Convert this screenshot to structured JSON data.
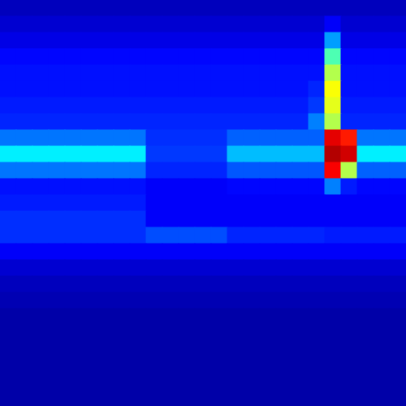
{
  "chart_data": {
    "type": "heatmap",
    "color": "jet",
    "tick_labels": false,
    "zlim": [
      0,
      1
    ],
    "cells": [
      [
        0.06,
        0.06,
        0.06,
        0.06,
        0.06,
        0.06,
        0.06,
        0.06,
        0.06,
        0.06,
        0.06,
        0.06,
        0.06,
        0.06,
        0.06,
        0.06,
        0.06,
        0.06,
        0.06,
        0.06,
        0.06,
        0.06,
        0.06,
        0.06,
        0.06
      ],
      [
        0.08,
        0.08,
        0.08,
        0.08,
        0.08,
        0.08,
        0.08,
        0.08,
        0.08,
        0.08,
        0.08,
        0.08,
        0.08,
        0.08,
        0.08,
        0.08,
        0.08,
        0.08,
        0.08,
        0.08,
        0.12,
        0.08,
        0.08,
        0.08,
        0.08
      ],
      [
        0.1,
        0.1,
        0.1,
        0.1,
        0.1,
        0.1,
        0.1,
        0.1,
        0.1,
        0.1,
        0.1,
        0.1,
        0.1,
        0.1,
        0.1,
        0.1,
        0.1,
        0.1,
        0.1,
        0.1,
        0.28,
        0.1,
        0.1,
        0.1,
        0.1
      ],
      [
        0.13,
        0.13,
        0.13,
        0.13,
        0.13,
        0.13,
        0.13,
        0.13,
        0.13,
        0.13,
        0.13,
        0.13,
        0.13,
        0.13,
        0.13,
        0.13,
        0.13,
        0.13,
        0.13,
        0.13,
        0.45,
        0.13,
        0.13,
        0.13,
        0.13
      ],
      [
        0.14,
        0.14,
        0.14,
        0.14,
        0.14,
        0.14,
        0.14,
        0.14,
        0.14,
        0.14,
        0.14,
        0.14,
        0.14,
        0.14,
        0.14,
        0.14,
        0.14,
        0.14,
        0.14,
        0.14,
        0.55,
        0.14,
        0.14,
        0.14,
        0.14
      ],
      [
        0.14,
        0.14,
        0.14,
        0.14,
        0.14,
        0.14,
        0.14,
        0.14,
        0.14,
        0.14,
        0.14,
        0.14,
        0.14,
        0.14,
        0.14,
        0.14,
        0.14,
        0.14,
        0.14,
        0.16,
        0.62,
        0.14,
        0.14,
        0.14,
        0.14
      ],
      [
        0.15,
        0.15,
        0.15,
        0.15,
        0.15,
        0.15,
        0.15,
        0.15,
        0.15,
        0.15,
        0.15,
        0.15,
        0.15,
        0.15,
        0.15,
        0.15,
        0.15,
        0.15,
        0.15,
        0.18,
        0.6,
        0.15,
        0.15,
        0.15,
        0.15
      ],
      [
        0.16,
        0.16,
        0.16,
        0.16,
        0.16,
        0.16,
        0.16,
        0.16,
        0.16,
        0.16,
        0.16,
        0.16,
        0.16,
        0.16,
        0.16,
        0.16,
        0.16,
        0.16,
        0.16,
        0.25,
        0.55,
        0.16,
        0.16,
        0.16,
        0.16
      ],
      [
        0.24,
        0.24,
        0.24,
        0.24,
        0.24,
        0.24,
        0.24,
        0.24,
        0.24,
        0.17,
        0.17,
        0.17,
        0.17,
        0.17,
        0.22,
        0.22,
        0.22,
        0.22,
        0.22,
        0.22,
        0.9,
        0.85,
        0.24,
        0.24,
        0.24
      ],
      [
        0.36,
        0.36,
        0.36,
        0.36,
        0.36,
        0.36,
        0.36,
        0.36,
        0.36,
        0.18,
        0.18,
        0.18,
        0.18,
        0.18,
        0.31,
        0.31,
        0.31,
        0.31,
        0.31,
        0.31,
        0.95,
        0.92,
        0.36,
        0.36,
        0.36
      ],
      [
        0.24,
        0.24,
        0.24,
        0.24,
        0.24,
        0.24,
        0.24,
        0.24,
        0.24,
        0.16,
        0.16,
        0.16,
        0.16,
        0.16,
        0.21,
        0.21,
        0.21,
        0.21,
        0.21,
        0.21,
        0.88,
        0.55,
        0.22,
        0.22,
        0.22
      ],
      [
        0.14,
        0.14,
        0.14,
        0.14,
        0.14,
        0.14,
        0.14,
        0.14,
        0.14,
        0.12,
        0.12,
        0.12,
        0.12,
        0.12,
        0.13,
        0.13,
        0.13,
        0.13,
        0.13,
        0.13,
        0.25,
        0.15,
        0.13,
        0.13,
        0.13
      ],
      [
        0.15,
        0.15,
        0.15,
        0.15,
        0.15,
        0.15,
        0.15,
        0.15,
        0.15,
        0.12,
        0.12,
        0.12,
        0.12,
        0.12,
        0.12,
        0.12,
        0.12,
        0.12,
        0.12,
        0.12,
        0.12,
        0.12,
        0.12,
        0.12,
        0.12
      ],
      [
        0.17,
        0.17,
        0.17,
        0.17,
        0.17,
        0.17,
        0.17,
        0.17,
        0.17,
        0.12,
        0.12,
        0.12,
        0.12,
        0.12,
        0.12,
        0.12,
        0.12,
        0.12,
        0.12,
        0.12,
        0.12,
        0.12,
        0.12,
        0.12,
        0.12
      ],
      [
        0.17,
        0.17,
        0.17,
        0.17,
        0.17,
        0.17,
        0.17,
        0.17,
        0.17,
        0.2,
        0.2,
        0.2,
        0.2,
        0.2,
        0.16,
        0.16,
        0.16,
        0.16,
        0.16,
        0.16,
        0.15,
        0.15,
        0.15,
        0.15,
        0.15
      ],
      [
        0.12,
        0.12,
        0.12,
        0.12,
        0.12,
        0.12,
        0.12,
        0.12,
        0.12,
        0.12,
        0.12,
        0.12,
        0.12,
        0.12,
        0.12,
        0.12,
        0.12,
        0.12,
        0.12,
        0.12,
        0.12,
        0.12,
        0.12,
        0.12,
        0.12
      ],
      [
        0.08,
        0.08,
        0.08,
        0.08,
        0.08,
        0.08,
        0.08,
        0.08,
        0.08,
        0.08,
        0.08,
        0.08,
        0.08,
        0.08,
        0.08,
        0.08,
        0.08,
        0.08,
        0.08,
        0.08,
        0.08,
        0.08,
        0.08,
        0.08,
        0.08
      ],
      [
        0.06,
        0.06,
        0.06,
        0.06,
        0.06,
        0.06,
        0.06,
        0.06,
        0.06,
        0.06,
        0.06,
        0.06,
        0.06,
        0.06,
        0.06,
        0.06,
        0.06,
        0.06,
        0.06,
        0.06,
        0.06,
        0.06,
        0.06,
        0.06,
        0.06
      ],
      [
        0.05,
        0.05,
        0.05,
        0.05,
        0.05,
        0.05,
        0.05,
        0.05,
        0.05,
        0.05,
        0.05,
        0.05,
        0.05,
        0.05,
        0.05,
        0.05,
        0.05,
        0.05,
        0.05,
        0.05,
        0.05,
        0.05,
        0.05,
        0.05,
        0.05
      ],
      [
        0.04,
        0.04,
        0.04,
        0.04,
        0.04,
        0.04,
        0.04,
        0.04,
        0.04,
        0.04,
        0.04,
        0.04,
        0.04,
        0.04,
        0.04,
        0.04,
        0.04,
        0.04,
        0.04,
        0.04,
        0.04,
        0.04,
        0.04,
        0.04,
        0.04
      ],
      [
        0.04,
        0.04,
        0.04,
        0.04,
        0.04,
        0.04,
        0.04,
        0.04,
        0.04,
        0.04,
        0.04,
        0.04,
        0.04,
        0.04,
        0.04,
        0.04,
        0.04,
        0.04,
        0.04,
        0.04,
        0.04,
        0.04,
        0.04,
        0.04,
        0.04
      ],
      [
        0.04,
        0.04,
        0.04,
        0.04,
        0.04,
        0.04,
        0.04,
        0.04,
        0.04,
        0.04,
        0.04,
        0.04,
        0.04,
        0.04,
        0.04,
        0.04,
        0.04,
        0.04,
        0.04,
        0.04,
        0.04,
        0.04,
        0.04,
        0.04,
        0.04
      ],
      [
        0.04,
        0.04,
        0.04,
        0.04,
        0.04,
        0.04,
        0.04,
        0.04,
        0.04,
        0.04,
        0.04,
        0.04,
        0.04,
        0.04,
        0.04,
        0.04,
        0.04,
        0.04,
        0.04,
        0.04,
        0.04,
        0.04,
        0.04,
        0.04,
        0.04
      ],
      [
        0.04,
        0.04,
        0.04,
        0.04,
        0.04,
        0.04,
        0.04,
        0.04,
        0.04,
        0.04,
        0.04,
        0.04,
        0.04,
        0.04,
        0.04,
        0.04,
        0.04,
        0.04,
        0.04,
        0.04,
        0.04,
        0.04,
        0.04,
        0.04,
        0.04
      ],
      [
        0.04,
        0.04,
        0.04,
        0.04,
        0.04,
        0.04,
        0.04,
        0.04,
        0.04,
        0.04,
        0.04,
        0.04,
        0.04,
        0.04,
        0.04,
        0.04,
        0.04,
        0.04,
        0.04,
        0.04,
        0.04,
        0.04,
        0.04,
        0.04,
        0.04
      ]
    ]
  }
}
